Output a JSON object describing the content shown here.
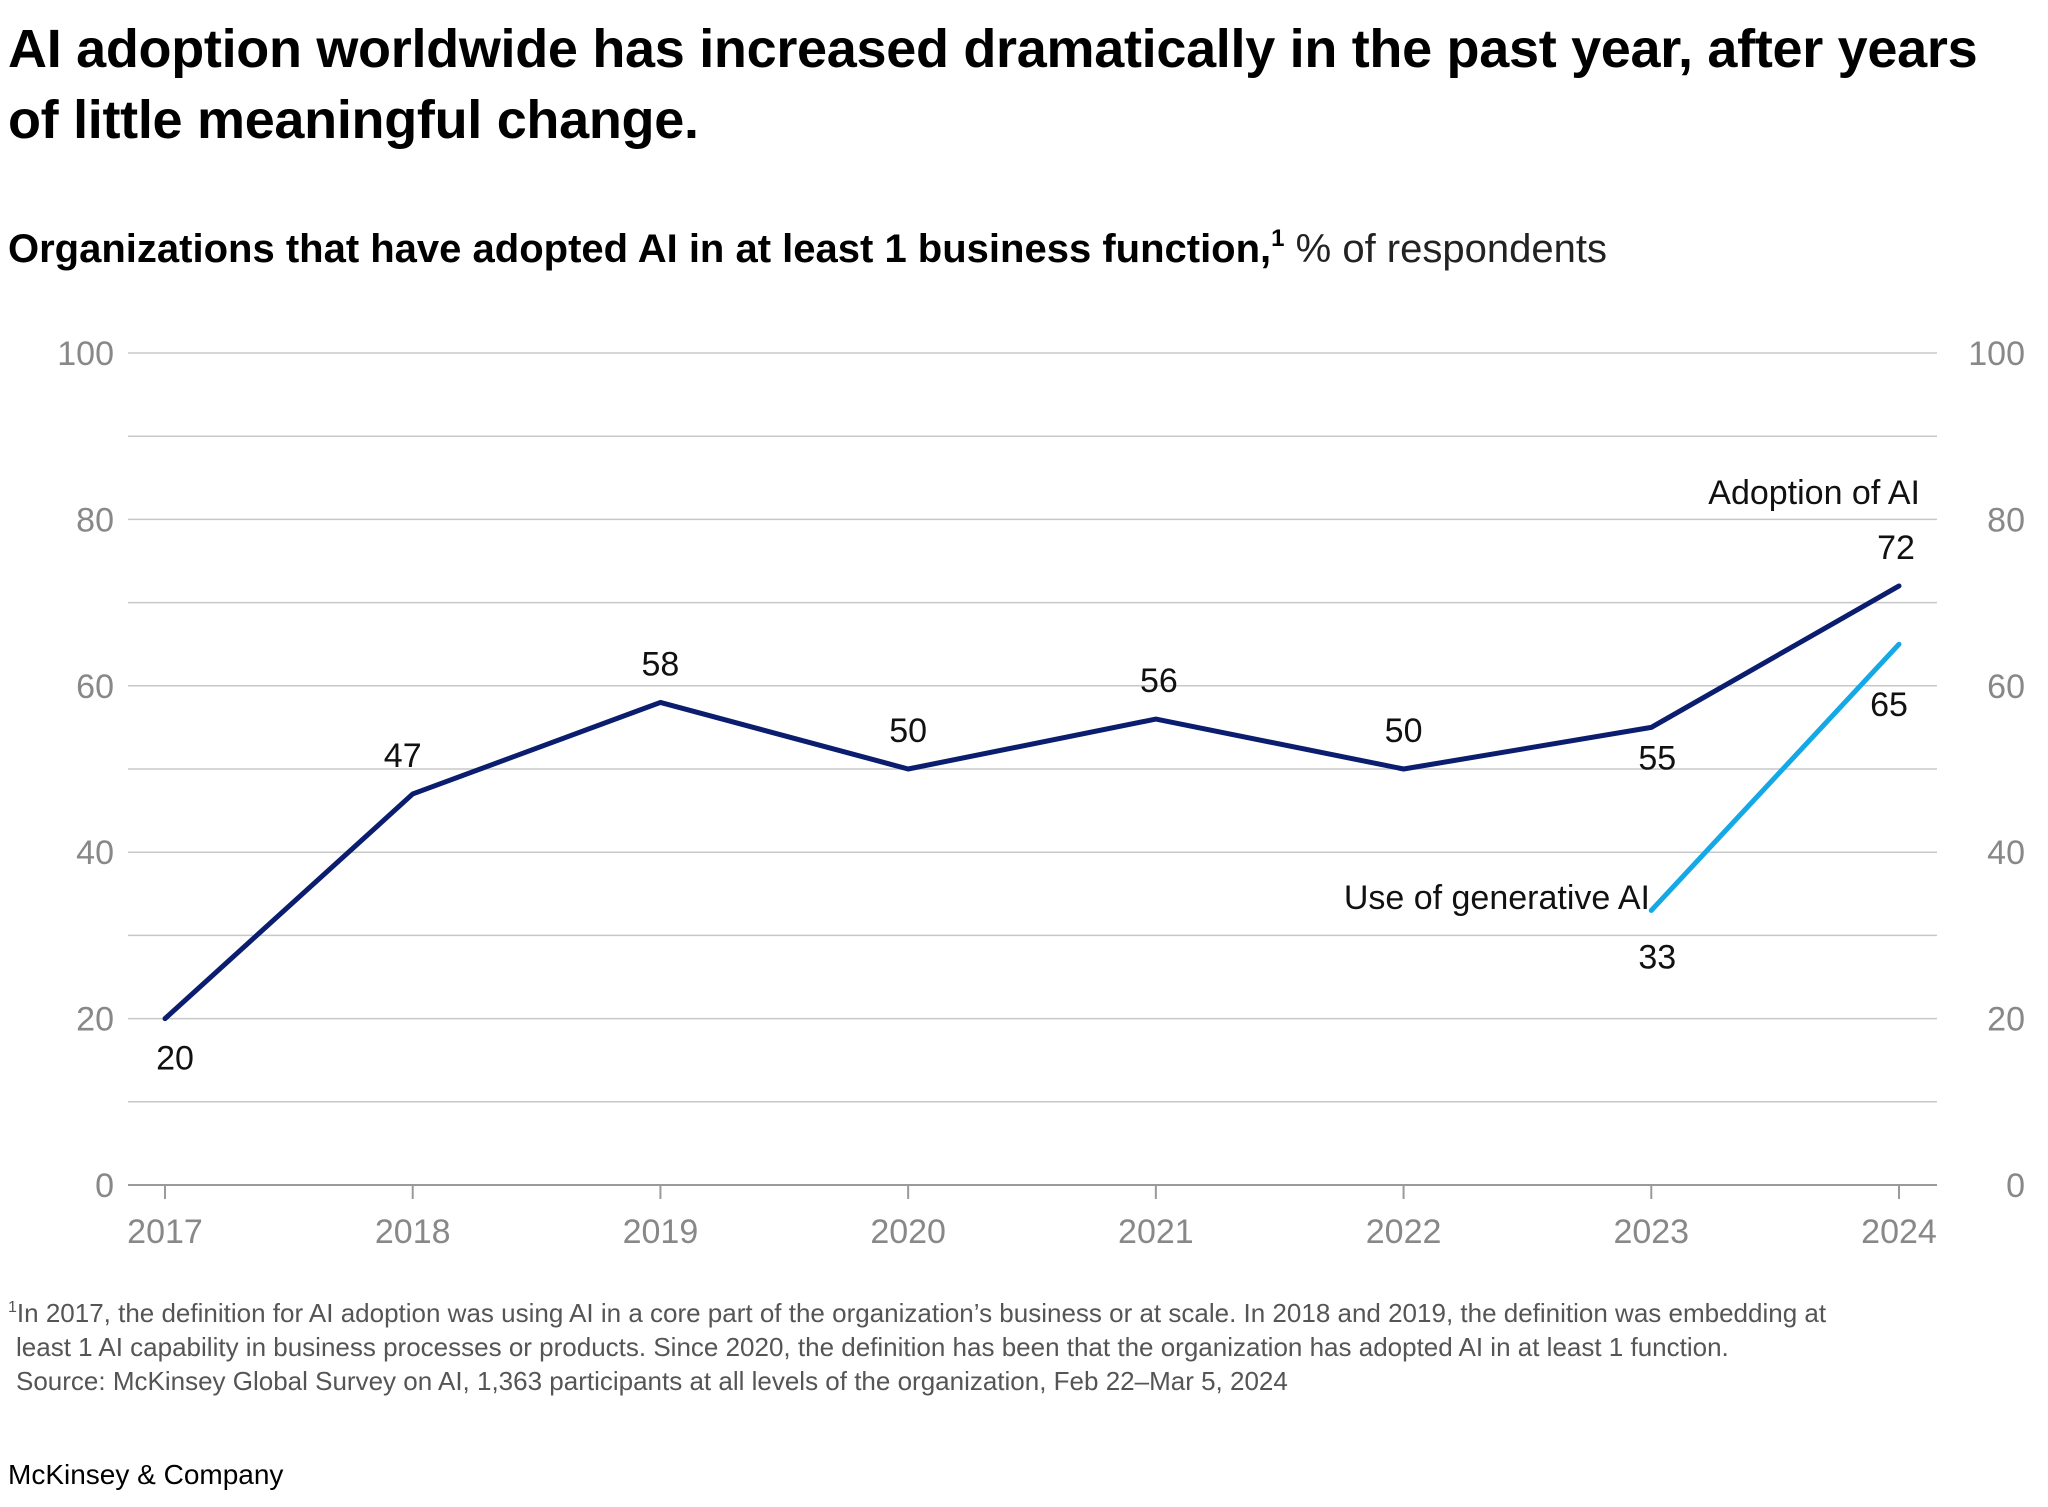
{
  "headline": "AI adoption worldwide has increased dramatically in the past year, after years of little meaningful change.",
  "subtitle": {
    "bold": "Organizations that have adopted AI in at least 1 business function,",
    "footnote_marker": "1",
    "unit": " % of respondents"
  },
  "colors": {
    "adoption": "#0b1d6e",
    "generative": "#14a8e6",
    "grid": "#c8c8c8",
    "axis_text": "#888888"
  },
  "chart_data": {
    "type": "line",
    "title": "Organizations that have adopted AI in at least 1 business function, % of respondents",
    "xlabel": "",
    "ylabel": "% of respondents",
    "categories": [
      "2017",
      "2018",
      "2019",
      "2020",
      "2021",
      "2022",
      "2023",
      "2024"
    ],
    "ylim": [
      0,
      100
    ],
    "yticks": [
      "0",
      "20",
      "40",
      "60",
      "80",
      "100"
    ],
    "grid": true,
    "series": [
      {
        "name": "Adoption of AI",
        "values": [
          20,
          47,
          58,
          50,
          56,
          50,
          55,
          72
        ]
      },
      {
        "name": "Use of generative AI",
        "values": [
          null,
          null,
          null,
          null,
          null,
          null,
          33,
          65
        ]
      }
    ]
  },
  "footnote": {
    "marker": "1",
    "line1": "In 2017, the definition for AI adoption was using AI in a core part of the organization’s business or at scale. In 2018 and 2019, the definition was embedding at",
    "line2": "least 1 AI capability in business processes or products. Since 2020, the definition has been that the organization has adopted AI in at least 1 function.",
    "source": "Source: McKinsey Global Survey on AI, 1,363 participants at all levels of the organization, Feb 22–Mar 5, 2024"
  },
  "brand": "McKinsey & Company"
}
